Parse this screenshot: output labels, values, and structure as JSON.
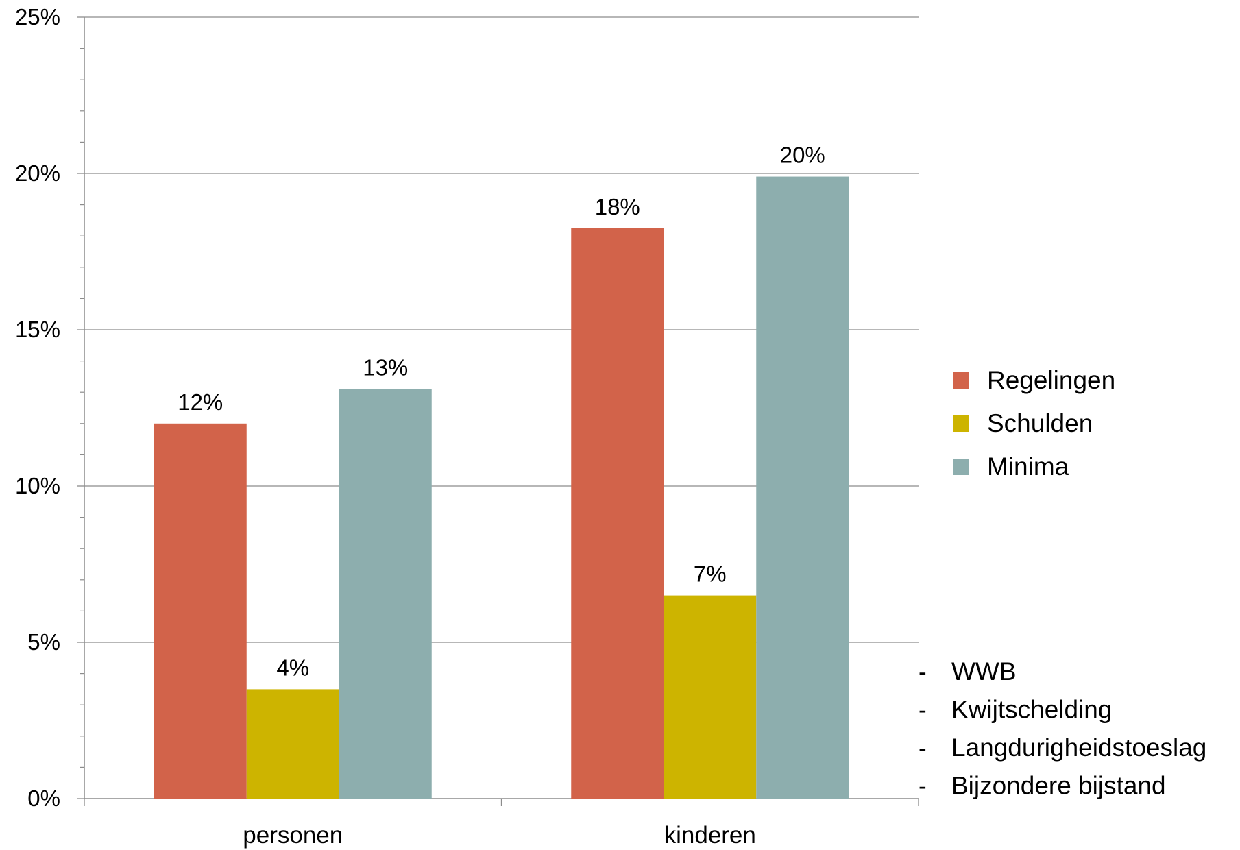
{
  "chart_data": {
    "type": "bar",
    "categories": [
      "personen",
      "kinderen"
    ],
    "series": [
      {
        "name": "Regelingen",
        "values": [
          12,
          18.25
        ],
        "labels": [
          "12%",
          "18%"
        ],
        "color": "#d2634a"
      },
      {
        "name": "Schulden",
        "values": [
          3.5,
          6.5
        ],
        "labels": [
          "4%",
          "7%"
        ],
        "color": "#cdb400"
      },
      {
        "name": "Minima",
        "values": [
          13.1,
          19.9
        ],
        "labels": [
          "13%",
          "20%"
        ],
        "color": "#8daeae"
      }
    ],
    "ylim": [
      0,
      25
    ],
    "yticks": [
      0,
      5,
      10,
      15,
      20,
      25
    ],
    "ytick_labels": [
      "0%",
      "5%",
      "10%",
      "15%",
      "20%",
      "25%"
    ],
    "grid": true,
    "legend_position": "right",
    "title": "",
    "xlabel": "",
    "ylabel": ""
  },
  "notes": [
    "WWB",
    "Kwijtschelding",
    "Langdurigheidstoeslag",
    "Bijzondere bijstand"
  ],
  "note_dash": "-"
}
